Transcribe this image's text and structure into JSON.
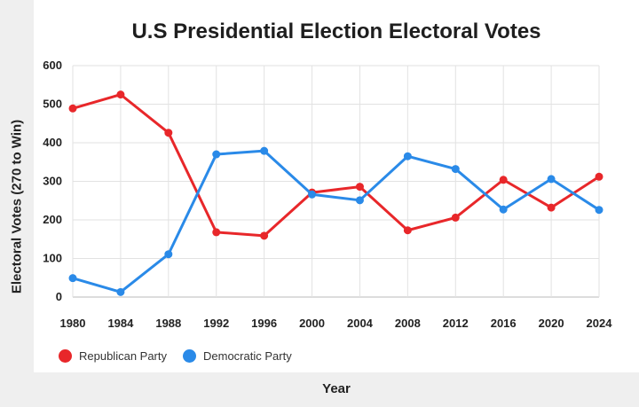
{
  "chart_data": {
    "type": "line",
    "title": "U.S Presidential Election Electoral Votes",
    "xlabel": "Year",
    "ylabel": "Electoral Votes (270 to Win)",
    "x": [
      "1980",
      "1984",
      "1988",
      "1992",
      "1996",
      "2000",
      "2004",
      "2008",
      "2012",
      "2016",
      "2020",
      "2024"
    ],
    "ylim": [
      0,
      600
    ],
    "yticks": [
      0,
      100,
      200,
      300,
      400,
      500,
      600
    ],
    "grid": true,
    "legend_position": "bottom-left",
    "series": [
      {
        "name": "Republican Party",
        "color": "#e8272a",
        "values": [
          489,
          525,
          426,
          168,
          159,
          271,
          286,
          173,
          206,
          304,
          232,
          312
        ]
      },
      {
        "name": "Democratic Party",
        "color": "#2a8ae8",
        "values": [
          49,
          13,
          111,
          370,
          379,
          266,
          251,
          365,
          332,
          227,
          306,
          226
        ]
      }
    ]
  }
}
